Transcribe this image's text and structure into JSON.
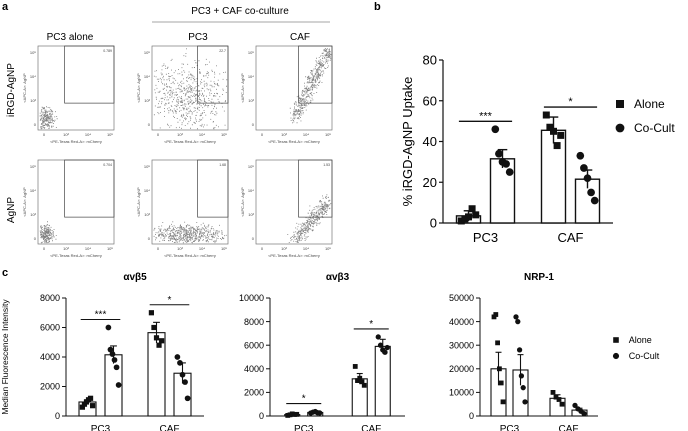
{
  "panel_letters": {
    "a": "a",
    "b": "b",
    "c": "c"
  },
  "flow": {
    "header_group": "PC3 + CAF co-culture",
    "columns": [
      "PC3 alone",
      "PC3",
      "CAF"
    ],
    "rows": [
      "iRGD-AgNP",
      "AgNP"
    ],
    "x_axis_caption": "<PE-Texas Red-A>: mCherry",
    "y_axis_caption": "<APC-A>: AgNP",
    "x_ticks": [
      "0",
      "10³",
      "10⁴",
      "10⁵"
    ],
    "y_ticks": [
      "0",
      "10³",
      "10⁴",
      "10⁵"
    ],
    "gate_values": [
      [
        "0.789",
        "22.7",
        "79.3"
      ],
      [
        "0.704",
        "1.68",
        "1.53"
      ]
    ],
    "dot_color": "#555555"
  },
  "chart_data": [
    {
      "id": "b",
      "type": "bar",
      "ylabel": "% iRGD-AgNP Uptake",
      "ylim": [
        0,
        80
      ],
      "yticks": [
        0,
        20,
        40,
        60,
        80
      ],
      "categories": [
        "PC3",
        "CAF"
      ],
      "series": [
        {
          "name": "Alone",
          "marker": "square",
          "values": [
            3.5,
            45.5
          ],
          "err": [
            2.5,
            6.5
          ],
          "points": [
            [
              1.0,
              2.0,
              3.0,
              7.0,
              4.0
            ],
            [
              53.0,
              47.0,
              45.0,
              38.0,
              43.0
            ]
          ]
        },
        {
          "name": "Co-Cult",
          "marker": "circle",
          "values": [
            31.5,
            21.5
          ],
          "err": [
            4.5,
            4.5
          ],
          "points": [
            [
              46.0,
              34.0,
              30.0,
              29.0,
              25.0
            ],
            [
              33.0,
              27.0,
              22.0,
              15.0,
              11.0
            ]
          ]
        }
      ],
      "significance": [
        "***",
        "*"
      ]
    },
    {
      "id": "c1",
      "type": "bar",
      "title": "αvβ5",
      "ylabel": "Median Fluorescence Intensity",
      "ylim": [
        0,
        8000
      ],
      "yticks": [
        0,
        2000,
        4000,
        6000,
        8000
      ],
      "categories": [
        "PC3",
        "CAF"
      ],
      "series": [
        {
          "name": "Alone",
          "marker": "square",
          "values": [
            950,
            5650
          ],
          "err": [
            150,
            700
          ],
          "points": [
            [
              600,
              800,
              950,
              1100,
              1200,
              700
            ],
            [
              7000,
              6000,
              5300,
              4800,
              5100
            ]
          ]
        },
        {
          "name": "Co-Cult",
          "marker": "circle",
          "values": [
            4150,
            2900
          ],
          "err": [
            600,
            700
          ],
          "points": [
            [
              6000,
              4500,
              4200,
              3800,
              3300,
              2100
            ],
            [
              4000,
              3600,
              2800,
              2300,
              1200
            ]
          ]
        }
      ],
      "significance": [
        "***",
        "*"
      ]
    },
    {
      "id": "c2",
      "type": "bar",
      "title": "αvβ3",
      "ylim": [
        0,
        10000
      ],
      "yticks": [
        0,
        2000,
        4000,
        6000,
        8000,
        10000
      ],
      "categories": [
        "PC3",
        "CAF"
      ],
      "series": [
        {
          "name": "Alone",
          "marker": "square",
          "values": [
            120,
            3150
          ],
          "err": [
            50,
            450
          ],
          "points": [
            [
              50,
              100,
              180,
              130,
              140
            ],
            [
              4200,
              3000,
              3200,
              2900,
              2600
            ]
          ]
        },
        {
          "name": "Co-Cult",
          "marker": "circle",
          "values": [
            300,
            5900
          ],
          "err": [
            50,
            600
          ],
          "points": [
            [
              250,
              330,
              380,
              280,
              260
            ],
            [
              6700,
              6000,
              5600,
              5400,
              5800
            ]
          ]
        }
      ],
      "significance": [
        "*",
        "*"
      ]
    },
    {
      "id": "c3",
      "type": "bar",
      "title": "NRP-1",
      "ylim": [
        0,
        50000
      ],
      "yticks": [
        0,
        10000,
        20000,
        30000,
        40000,
        50000
      ],
      "categories": [
        "PC3",
        "CAF"
      ],
      "series": [
        {
          "name": "Alone",
          "marker": "square",
          "values": [
            20000,
            7500
          ],
          "err": [
            7000,
            1500
          ],
          "points": [
            [
              42000,
              43000,
              31000,
              20000,
              14000,
              6000
            ],
            [
              10000,
              8000,
              7000,
              5000
            ]
          ]
        },
        {
          "name": "Co-Cult",
          "marker": "circle",
          "values": [
            19500,
            2500
          ],
          "err": [
            6500,
            800
          ],
          "points": [
            [
              42000,
              40000,
              28000,
              17000,
              12000,
              6000
            ],
            [
              4500,
              3000,
              2000,
              1000
            ]
          ]
        }
      ],
      "legend": [
        "Alone",
        "Co-Cult"
      ]
    }
  ]
}
